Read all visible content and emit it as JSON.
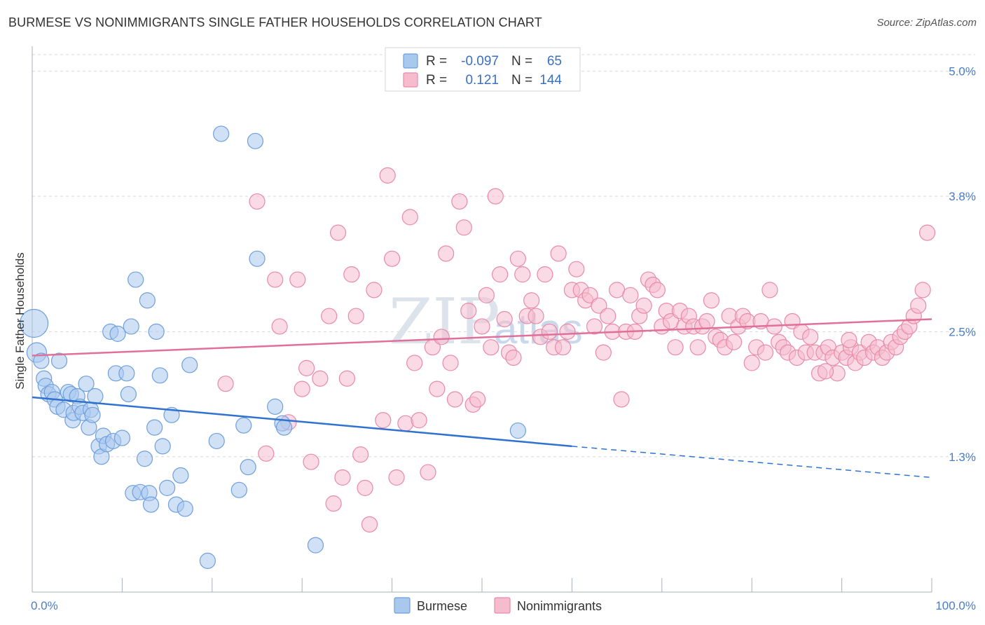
{
  "title": "BURMESE VS NONIMMIGRANTS SINGLE FATHER HOUSEHOLDS CORRELATION CHART",
  "source": "Source: ZipAtlas.com",
  "watermark": "ZIP",
  "watermark_sub": "atlas",
  "colors": {
    "burmese_fill": "#a9c8ee",
    "burmese_stroke": "#6f9fdc",
    "burmese_line": "#2f72d0",
    "nonimm_fill": "#f6bccd",
    "nonimm_stroke": "#e98aa8",
    "nonimm_line": "#e0709a",
    "grid": "#d5d9de",
    "tick_text": "#4a7cc9"
  },
  "legend": {
    "rows": [
      {
        "r_label": "R =",
        "r_value": "-0.097",
        "n_label": "N =",
        "n_value": "65"
      },
      {
        "r_label": "R =",
        "r_value": "0.121",
        "n_label": "N =",
        "n_value": "144"
      }
    ]
  },
  "chart_data": {
    "type": "scatter",
    "title": "BURMESE VS NONIMMIGRANTS SINGLE FATHER HOUSEHOLDS CORRELATION CHART",
    "xlabel": "",
    "ylabel": "Single Father Households",
    "xlim": [
      0,
      100
    ],
    "ylim": [
      0.0,
      5.2
    ],
    "x_tick_labels": [
      "0.0%",
      "100.0%"
    ],
    "y_ticks": [
      1.3,
      2.5,
      3.8,
      5.0
    ],
    "y_tick_labels": [
      "1.3%",
      "2.5%",
      "3.8%",
      "5.0%"
    ],
    "grid": "horizontal dashed",
    "legend_position": "top-center",
    "series": [
      {
        "name": "Burmese",
        "r": -0.097,
        "n": 65,
        "trend": {
          "x0": 0,
          "y0": 1.87,
          "x1": 60,
          "y1": 1.4,
          "dashed_to_x": 100,
          "dashed_to_y": 1.1
        },
        "points": [
          [
            0.2,
            2.58,
            20
          ],
          [
            0.5,
            2.3,
            14
          ],
          [
            1,
            2.22,
            11
          ],
          [
            1.3,
            2.05,
            11
          ],
          [
            1.5,
            1.98,
            11
          ],
          [
            1.8,
            1.9,
            11
          ],
          [
            2.2,
            1.92,
            11
          ],
          [
            2.5,
            1.85,
            11
          ],
          [
            2.8,
            1.78,
            11
          ],
          [
            3,
            2.22,
            11
          ],
          [
            3.5,
            1.75,
            11
          ],
          [
            4,
            1.92,
            11
          ],
          [
            4.3,
            1.9,
            11
          ],
          [
            4.5,
            1.65,
            11
          ],
          [
            4.6,
            1.72,
            11
          ],
          [
            5,
            1.88,
            11
          ],
          [
            5.3,
            1.78,
            11
          ],
          [
            5.6,
            1.72,
            11
          ],
          [
            6,
            2.0,
            11
          ],
          [
            6.3,
            1.58,
            11
          ],
          [
            6.5,
            1.75,
            11
          ],
          [
            6.7,
            1.7,
            11
          ],
          [
            7,
            1.88,
            11
          ],
          [
            7.4,
            1.4,
            11
          ],
          [
            7.7,
            1.3,
            11
          ],
          [
            7.9,
            1.5,
            11
          ],
          [
            8.3,
            1.42,
            11
          ],
          [
            8.7,
            2.5,
            11
          ],
          [
            9,
            1.45,
            11
          ],
          [
            9.5,
            2.48,
            11
          ],
          [
            9.3,
            2.1,
            11
          ],
          [
            10,
            1.48,
            11
          ],
          [
            10.5,
            2.1,
            11
          ],
          [
            10.7,
            1.9,
            11
          ],
          [
            11,
            2.55,
            11
          ],
          [
            11.2,
            0.95,
            11
          ],
          [
            11.5,
            3.0,
            11
          ],
          [
            12,
            0.96,
            11
          ],
          [
            12.5,
            1.28,
            11
          ],
          [
            12.8,
            2.8,
            11
          ],
          [
            13,
            0.95,
            11
          ],
          [
            13.2,
            0.84,
            11
          ],
          [
            13.6,
            1.58,
            11
          ],
          [
            13.8,
            2.5,
            11
          ],
          [
            14.2,
            2.08,
            11
          ],
          [
            14.5,
            1.4,
            11
          ],
          [
            15,
            1.0,
            11
          ],
          [
            15.5,
            1.7,
            11
          ],
          [
            16,
            0.84,
            11
          ],
          [
            16.5,
            1.12,
            11
          ],
          [
            17,
            0.8,
            11
          ],
          [
            17.5,
            2.18,
            11
          ],
          [
            19.5,
            0.3,
            11
          ],
          [
            20.5,
            1.45,
            11
          ],
          [
            21,
            4.4,
            11
          ],
          [
            23,
            0.98,
            11
          ],
          [
            23.5,
            1.6,
            11
          ],
          [
            24,
            1.2,
            11
          ],
          [
            24.8,
            4.33,
            11
          ],
          [
            25,
            3.2,
            11
          ],
          [
            27,
            1.78,
            11
          ],
          [
            27.8,
            1.62,
            11
          ],
          [
            28,
            1.58,
            11
          ],
          [
            31.5,
            0.45,
            11
          ],
          [
            54,
            1.55,
            11
          ]
        ]
      },
      {
        "name": "Nonimmigrants",
        "r": 0.121,
        "n": 144,
        "trend": {
          "x0": 0,
          "y0": 2.27,
          "x1": 100,
          "y1": 2.62
        },
        "points": [
          [
            21.5,
            2.0,
            11
          ],
          [
            25,
            3.75,
            11
          ],
          [
            26,
            1.33,
            11
          ],
          [
            27,
            3.0,
            11
          ],
          [
            27.5,
            2.55,
            11
          ],
          [
            28.5,
            1.63,
            11
          ],
          [
            29.5,
            3.0,
            11
          ],
          [
            30,
            1.95,
            11
          ],
          [
            30.5,
            2.15,
            11
          ],
          [
            31,
            1.25,
            11
          ],
          [
            32,
            2.05,
            11
          ],
          [
            33,
            2.65,
            11
          ],
          [
            33.5,
            0.85,
            11
          ],
          [
            34,
            3.45,
            11
          ],
          [
            34.5,
            1.1,
            11
          ],
          [
            35,
            2.05,
            11
          ],
          [
            35.5,
            3.05,
            11
          ],
          [
            36,
            2.65,
            11
          ],
          [
            36.5,
            1.32,
            11
          ],
          [
            37,
            1.0,
            11
          ],
          [
            37.5,
            0.65,
            11
          ],
          [
            38,
            2.9,
            11
          ],
          [
            39,
            1.65,
            11
          ],
          [
            39.5,
            4.0,
            11
          ],
          [
            40,
            3.2,
            11
          ],
          [
            40.5,
            1.1,
            11
          ],
          [
            41.5,
            1.62,
            11
          ],
          [
            42,
            3.6,
            11
          ],
          [
            42.5,
            2.2,
            11
          ],
          [
            43,
            1.65,
            11
          ],
          [
            44,
            1.15,
            11
          ],
          [
            44.5,
            2.35,
            11
          ],
          [
            45,
            1.95,
            11
          ],
          [
            45.5,
            2.45,
            11
          ],
          [
            46,
            3.25,
            11
          ],
          [
            46.5,
            2.2,
            11
          ],
          [
            47,
            1.85,
            11
          ],
          [
            47.5,
            3.75,
            11
          ],
          [
            48,
            3.5,
            11
          ],
          [
            48.5,
            2.7,
            11
          ],
          [
            49,
            1.8,
            11
          ],
          [
            49.5,
            1.85,
            11
          ],
          [
            50,
            2.55,
            11
          ],
          [
            50.5,
            2.85,
            11
          ],
          [
            51,
            2.35,
            11
          ],
          [
            51.5,
            3.8,
            11
          ],
          [
            52,
            3.05,
            11
          ],
          [
            52.5,
            2.62,
            11
          ],
          [
            53,
            2.3,
            11
          ],
          [
            53.5,
            2.25,
            11
          ],
          [
            54,
            3.2,
            11
          ],
          [
            54.5,
            3.05,
            11
          ],
          [
            55,
            2.65,
            11
          ],
          [
            55.5,
            2.8,
            11
          ],
          [
            56,
            2.65,
            11
          ],
          [
            56.5,
            2.45,
            11
          ],
          [
            57,
            3.05,
            11
          ],
          [
            57.5,
            2.5,
            11
          ],
          [
            58,
            2.35,
            11
          ],
          [
            58.5,
            3.25,
            11
          ],
          [
            59,
            2.35,
            11
          ],
          [
            59.5,
            2.5,
            11
          ],
          [
            60,
            2.9,
            11
          ],
          [
            60.5,
            3.1,
            11
          ],
          [
            61,
            2.9,
            11
          ],
          [
            61.5,
            2.8,
            11
          ],
          [
            62,
            2.85,
            11
          ],
          [
            62.5,
            2.55,
            11
          ],
          [
            63,
            2.75,
            11
          ],
          [
            63.5,
            2.3,
            11
          ],
          [
            64,
            2.65,
            11
          ],
          [
            64.5,
            2.5,
            11
          ],
          [
            65,
            2.9,
            11
          ],
          [
            65.5,
            1.85,
            11
          ],
          [
            66,
            2.5,
            11
          ],
          [
            66.5,
            2.85,
            11
          ],
          [
            67,
            2.5,
            11
          ],
          [
            67.5,
            2.65,
            11
          ],
          [
            68,
            2.75,
            11
          ],
          [
            68.5,
            3.0,
            11
          ],
          [
            69,
            2.95,
            11
          ],
          [
            69.5,
            2.9,
            11
          ],
          [
            70,
            2.55,
            11
          ],
          [
            70.5,
            2.7,
            11
          ],
          [
            71,
            2.6,
            11
          ],
          [
            71.5,
            2.35,
            11
          ],
          [
            72,
            2.7,
            11
          ],
          [
            72.5,
            2.55,
            11
          ],
          [
            73,
            2.65,
            11
          ],
          [
            73.5,
            2.55,
            11
          ],
          [
            74,
            2.35,
            11
          ],
          [
            74.5,
            2.55,
            11
          ],
          [
            75,
            2.6,
            11
          ],
          [
            75.5,
            2.8,
            11
          ],
          [
            76,
            2.45,
            11
          ],
          [
            76.5,
            2.42,
            11
          ],
          [
            77,
            2.35,
            11
          ],
          [
            77.5,
            2.65,
            11
          ],
          [
            78,
            2.4,
            11
          ],
          [
            78.5,
            2.55,
            11
          ],
          [
            79,
            2.65,
            11
          ],
          [
            79.5,
            2.6,
            11
          ],
          [
            80,
            2.2,
            11
          ],
          [
            80.5,
            2.35,
            11
          ],
          [
            81,
            2.6,
            11
          ],
          [
            81.5,
            2.3,
            11
          ],
          [
            82,
            2.9,
            11
          ],
          [
            82.5,
            2.55,
            11
          ],
          [
            83,
            2.4,
            11
          ],
          [
            83.5,
            2.35,
            11
          ],
          [
            84,
            2.3,
            11
          ],
          [
            84.5,
            2.6,
            11
          ],
          [
            85,
            2.25,
            11
          ],
          [
            85.5,
            2.5,
            11
          ],
          [
            86,
            2.3,
            11
          ],
          [
            86.5,
            2.45,
            11
          ],
          [
            87,
            2.3,
            11
          ],
          [
            87.5,
            2.1,
            11
          ],
          [
            88,
            2.3,
            11
          ],
          [
            88.5,
            2.35,
            11
          ],
          [
            89,
            2.25,
            11
          ],
          [
            89.5,
            2.1,
            11
          ],
          [
            90,
            2.3,
            11
          ],
          [
            90.5,
            2.25,
            11
          ],
          [
            91,
            2.35,
            11
          ],
          [
            91.5,
            2.2,
            11
          ],
          [
            92,
            2.3,
            11
          ],
          [
            92.5,
            2.25,
            11
          ],
          [
            93,
            2.4,
            11
          ],
          [
            93.5,
            2.3,
            11
          ],
          [
            94,
            2.35,
            11
          ],
          [
            94.5,
            2.25,
            11
          ],
          [
            95,
            2.3,
            11
          ],
          [
            95.5,
            2.4,
            11
          ],
          [
            96,
            2.35,
            11
          ],
          [
            96.5,
            2.45,
            11
          ],
          [
            97,
            2.5,
            11
          ],
          [
            97.5,
            2.55,
            11
          ],
          [
            98,
            2.65,
            11
          ],
          [
            98.5,
            2.75,
            11
          ],
          [
            99,
            2.9,
            11
          ],
          [
            99.5,
            3.45,
            11
          ],
          [
            88.2,
            2.12,
            11
          ],
          [
            90.8,
            2.42,
            11
          ]
        ]
      }
    ]
  }
}
